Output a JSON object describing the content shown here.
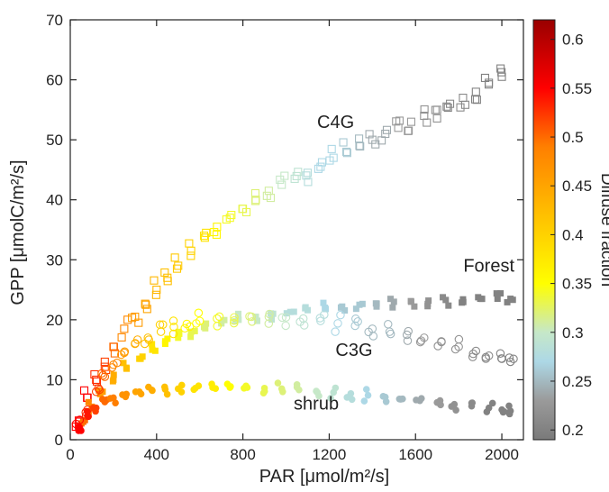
{
  "chart_data": {
    "type": "scatter",
    "title": "",
    "xlabel": "PAR [μmol/m²/s]",
    "ylabel": "GPP [μmolC/m²/s]",
    "xlim": [
      0,
      2100
    ],
    "ylim": [
      0,
      70
    ],
    "xticks": [
      0,
      400,
      800,
      1200,
      1600,
      2000
    ],
    "yticks": [
      0,
      10,
      20,
      30,
      40,
      50,
      60,
      70
    ],
    "grid": false,
    "colorbar": {
      "label": "Diffuse  fraction",
      "min": 0.19,
      "max": 0.62,
      "ticks": [
        0.2,
        0.25,
        0.3,
        0.35,
        0.4,
        0.45,
        0.5,
        0.55,
        0.6
      ],
      "stops": [
        {
          "v": 0.19,
          "color": "#7a7a7a"
        },
        {
          "v": 0.23,
          "color": "#9a9a9a"
        },
        {
          "v": 0.27,
          "color": "#add8e6"
        },
        {
          "v": 0.3,
          "color": "#c6e8c8"
        },
        {
          "v": 0.35,
          "color": "#ffff00"
        },
        {
          "v": 0.42,
          "color": "#ffc000"
        },
        {
          "v": 0.49,
          "color": "#ff7f00"
        },
        {
          "v": 0.55,
          "color": "#ff0000"
        },
        {
          "v": 0.62,
          "color": "#990000"
        }
      ]
    },
    "series": [
      {
        "name": "C4G",
        "marker": "open-square",
        "x": [
          40,
          80,
          120,
          160,
          200,
          250,
          300,
          350,
          400,
          450,
          500,
          560,
          620,
          680,
          740,
          800,
          860,
          920,
          980,
          1040,
          1100,
          1160,
          1220,
          1280,
          1340,
          1400,
          1460,
          1520,
          1580,
          1640,
          1700,
          1760,
          1820,
          1880,
          1940,
          2000
        ],
        "y": [
          3,
          7,
          10,
          13,
          15.5,
          18.5,
          20.5,
          22.5,
          25,
          27,
          29,
          31.5,
          34,
          35.5,
          37,
          38.5,
          40,
          41.5,
          42.5,
          43.5,
          44.5,
          45.5,
          47,
          48,
          49,
          50,
          51,
          52,
          53,
          54,
          55,
          56,
          57,
          58,
          59.5,
          60.5
        ],
        "diffuse": [
          0.55,
          0.55,
          0.53,
          0.52,
          0.5,
          0.48,
          0.46,
          0.45,
          0.43,
          0.42,
          0.41,
          0.4,
          0.38,
          0.36,
          0.34,
          0.33,
          0.32,
          0.31,
          0.3,
          0.29,
          0.28,
          0.27,
          0.27,
          0.26,
          0.25,
          0.24,
          0.24,
          0.23,
          0.23,
          0.22,
          0.22,
          0.21,
          0.21,
          0.2,
          0.2,
          0.2
        ]
      },
      {
        "name": "Forest",
        "marker": "filled-square",
        "x": [
          60,
          100,
          150,
          200,
          260,
          320,
          380,
          440,
          500,
          560,
          620,
          700,
          780,
          860,
          940,
          1020,
          1100,
          1180,
          1260,
          1340,
          1420,
          1500,
          1580,
          1660,
          1740,
          1820,
          1900,
          1980,
          2040
        ],
        "y": [
          3,
          5.5,
          8,
          10,
          12,
          13.5,
          15,
          16,
          17,
          18,
          18.8,
          19.5,
          20,
          20.5,
          21,
          21.3,
          21.6,
          22,
          22.2,
          22.5,
          22.7,
          23,
          23,
          23.2,
          23.3,
          23.4,
          23.5,
          23.5,
          23.5
        ],
        "diffuse": [
          0.5,
          0.48,
          0.46,
          0.44,
          0.42,
          0.4,
          0.38,
          0.36,
          0.34,
          0.33,
          0.32,
          0.31,
          0.3,
          0.3,
          0.29,
          0.28,
          0.28,
          0.27,
          0.26,
          0.26,
          0.25,
          0.24,
          0.23,
          0.22,
          0.21,
          0.2,
          0.2,
          0.2,
          0.2
        ]
      },
      {
        "name": "C3G",
        "marker": "open-circle",
        "x": [
          40,
          80,
          120,
          160,
          200,
          250,
          300,
          360,
          420,
          480,
          540,
          600,
          680,
          760,
          840,
          920,
          1000,
          1080,
          1160,
          1240,
          1320,
          1400,
          1480,
          1560,
          1640,
          1720,
          1800,
          1880,
          1940,
          2000,
          2040
        ],
        "y": [
          2,
          5,
          8,
          10.5,
          12.5,
          14.5,
          16,
          17,
          18,
          18.8,
          19.3,
          19.8,
          20.2,
          20.4,
          20.5,
          20.5,
          20.4,
          20.2,
          19.8,
          19.4,
          19,
          18.5,
          18,
          17.5,
          17,
          16.3,
          15.5,
          14.8,
          14,
          13.5,
          13
        ],
        "diffuse": [
          0.55,
          0.53,
          0.52,
          0.5,
          0.48,
          0.46,
          0.44,
          0.42,
          0.4,
          0.38,
          0.36,
          0.35,
          0.34,
          0.33,
          0.32,
          0.31,
          0.3,
          0.29,
          0.28,
          0.27,
          0.26,
          0.25,
          0.25,
          0.24,
          0.23,
          0.22,
          0.22,
          0.21,
          0.21,
          0.2,
          0.2
        ]
      },
      {
        "name": "shrub",
        "marker": "filled-circle",
        "x": [
          40,
          80,
          120,
          160,
          200,
          260,
          320,
          380,
          440,
          500,
          580,
          660,
          740,
          820,
          900,
          980,
          1060,
          1140,
          1220,
          1300,
          1380,
          1460,
          1540,
          1620,
          1700,
          1780,
          1860,
          1940,
          2000,
          2040
        ],
        "y": [
          2,
          4,
          5.3,
          6.3,
          7,
          7.6,
          8,
          8.2,
          8.4,
          8.5,
          8.6,
          8.7,
          8.7,
          8.7,
          8.6,
          8.5,
          8.3,
          8.1,
          7.9,
          7.7,
          7.4,
          7.1,
          6.8,
          6.5,
          6.2,
          5.9,
          5.6,
          5.3,
          5,
          4.8
        ],
        "diffuse": [
          0.55,
          0.54,
          0.52,
          0.5,
          0.49,
          0.47,
          0.45,
          0.44,
          0.42,
          0.4,
          0.38,
          0.37,
          0.35,
          0.34,
          0.33,
          0.32,
          0.31,
          0.3,
          0.29,
          0.28,
          0.27,
          0.26,
          0.25,
          0.24,
          0.23,
          0.22,
          0.21,
          0.2,
          0.2,
          0.2
        ]
      }
    ],
    "annotations": [
      {
        "text": "C4G",
        "x": 1230,
        "y": 52
      },
      {
        "text": "Forest",
        "x": 1940,
        "y": 28
      },
      {
        "text": "C3G",
        "x": 1315,
        "y": 14
      },
      {
        "text": "shrub",
        "x": 1140,
        "y": 5
      }
    ]
  }
}
